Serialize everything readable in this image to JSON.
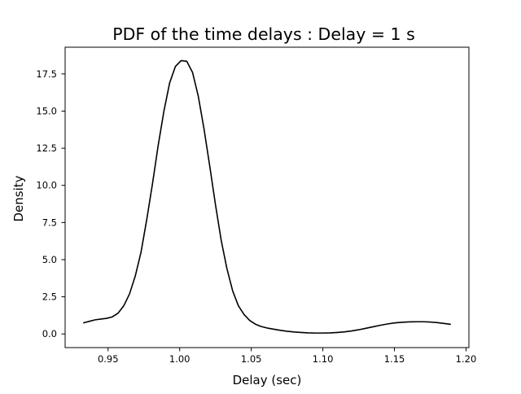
{
  "chart_data": {
    "type": "line",
    "title": "PDF of the time delays : Delay = 1 s",
    "xlabel": "Delay (sec)",
    "ylabel": "Density",
    "xlim": [
      0.92,
      1.202
    ],
    "ylim": [
      -0.92,
      19.3
    ],
    "xticks": [
      0.95,
      1.0,
      1.05,
      1.1,
      1.15,
      1.2
    ],
    "xtick_labels": [
      "0.95",
      "1.00",
      "1.05",
      "1.10",
      "1.15",
      "1.20"
    ],
    "yticks": [
      0.0,
      2.5,
      5.0,
      7.5,
      10.0,
      12.5,
      15.0,
      17.5
    ],
    "ytick_labels": [
      "0.0",
      "2.5",
      "5.0",
      "7.5",
      "10.0",
      "12.5",
      "15.0",
      "17.5"
    ],
    "grid": false,
    "line_color": "#000000",
    "series": [
      {
        "x": [
          0.933,
          0.937,
          0.941,
          0.945,
          0.949,
          0.953,
          0.957,
          0.961,
          0.965,
          0.969,
          0.973,
          0.977,
          0.981,
          0.985,
          0.989,
          0.993,
          0.997,
          1.001,
          1.005,
          1.009,
          1.013,
          1.017,
          1.021,
          1.025,
          1.029,
          1.033,
          1.037,
          1.041,
          1.045,
          1.049,
          1.053,
          1.057,
          1.061,
          1.065,
          1.07,
          1.075,
          1.08,
          1.085,
          1.09,
          1.095,
          1.1,
          1.105,
          1.11,
          1.115,
          1.12,
          1.125,
          1.13,
          1.135,
          1.14,
          1.145,
          1.15,
          1.155,
          1.16,
          1.165,
          1.17,
          1.175,
          1.18,
          1.185,
          1.189
        ],
        "values": [
          0.75,
          0.85,
          0.95,
          1.0,
          1.05,
          1.15,
          1.4,
          1.9,
          2.7,
          3.9,
          5.5,
          7.7,
          10.1,
          12.7,
          15.0,
          16.9,
          18.0,
          18.4,
          18.35,
          17.6,
          16.0,
          13.8,
          11.3,
          8.7,
          6.3,
          4.4,
          2.9,
          1.9,
          1.3,
          0.9,
          0.65,
          0.5,
          0.4,
          0.33,
          0.25,
          0.18,
          0.13,
          0.1,
          0.07,
          0.06,
          0.06,
          0.07,
          0.1,
          0.14,
          0.2,
          0.28,
          0.38,
          0.48,
          0.58,
          0.67,
          0.74,
          0.78,
          0.81,
          0.82,
          0.82,
          0.8,
          0.76,
          0.7,
          0.65
        ]
      }
    ]
  }
}
